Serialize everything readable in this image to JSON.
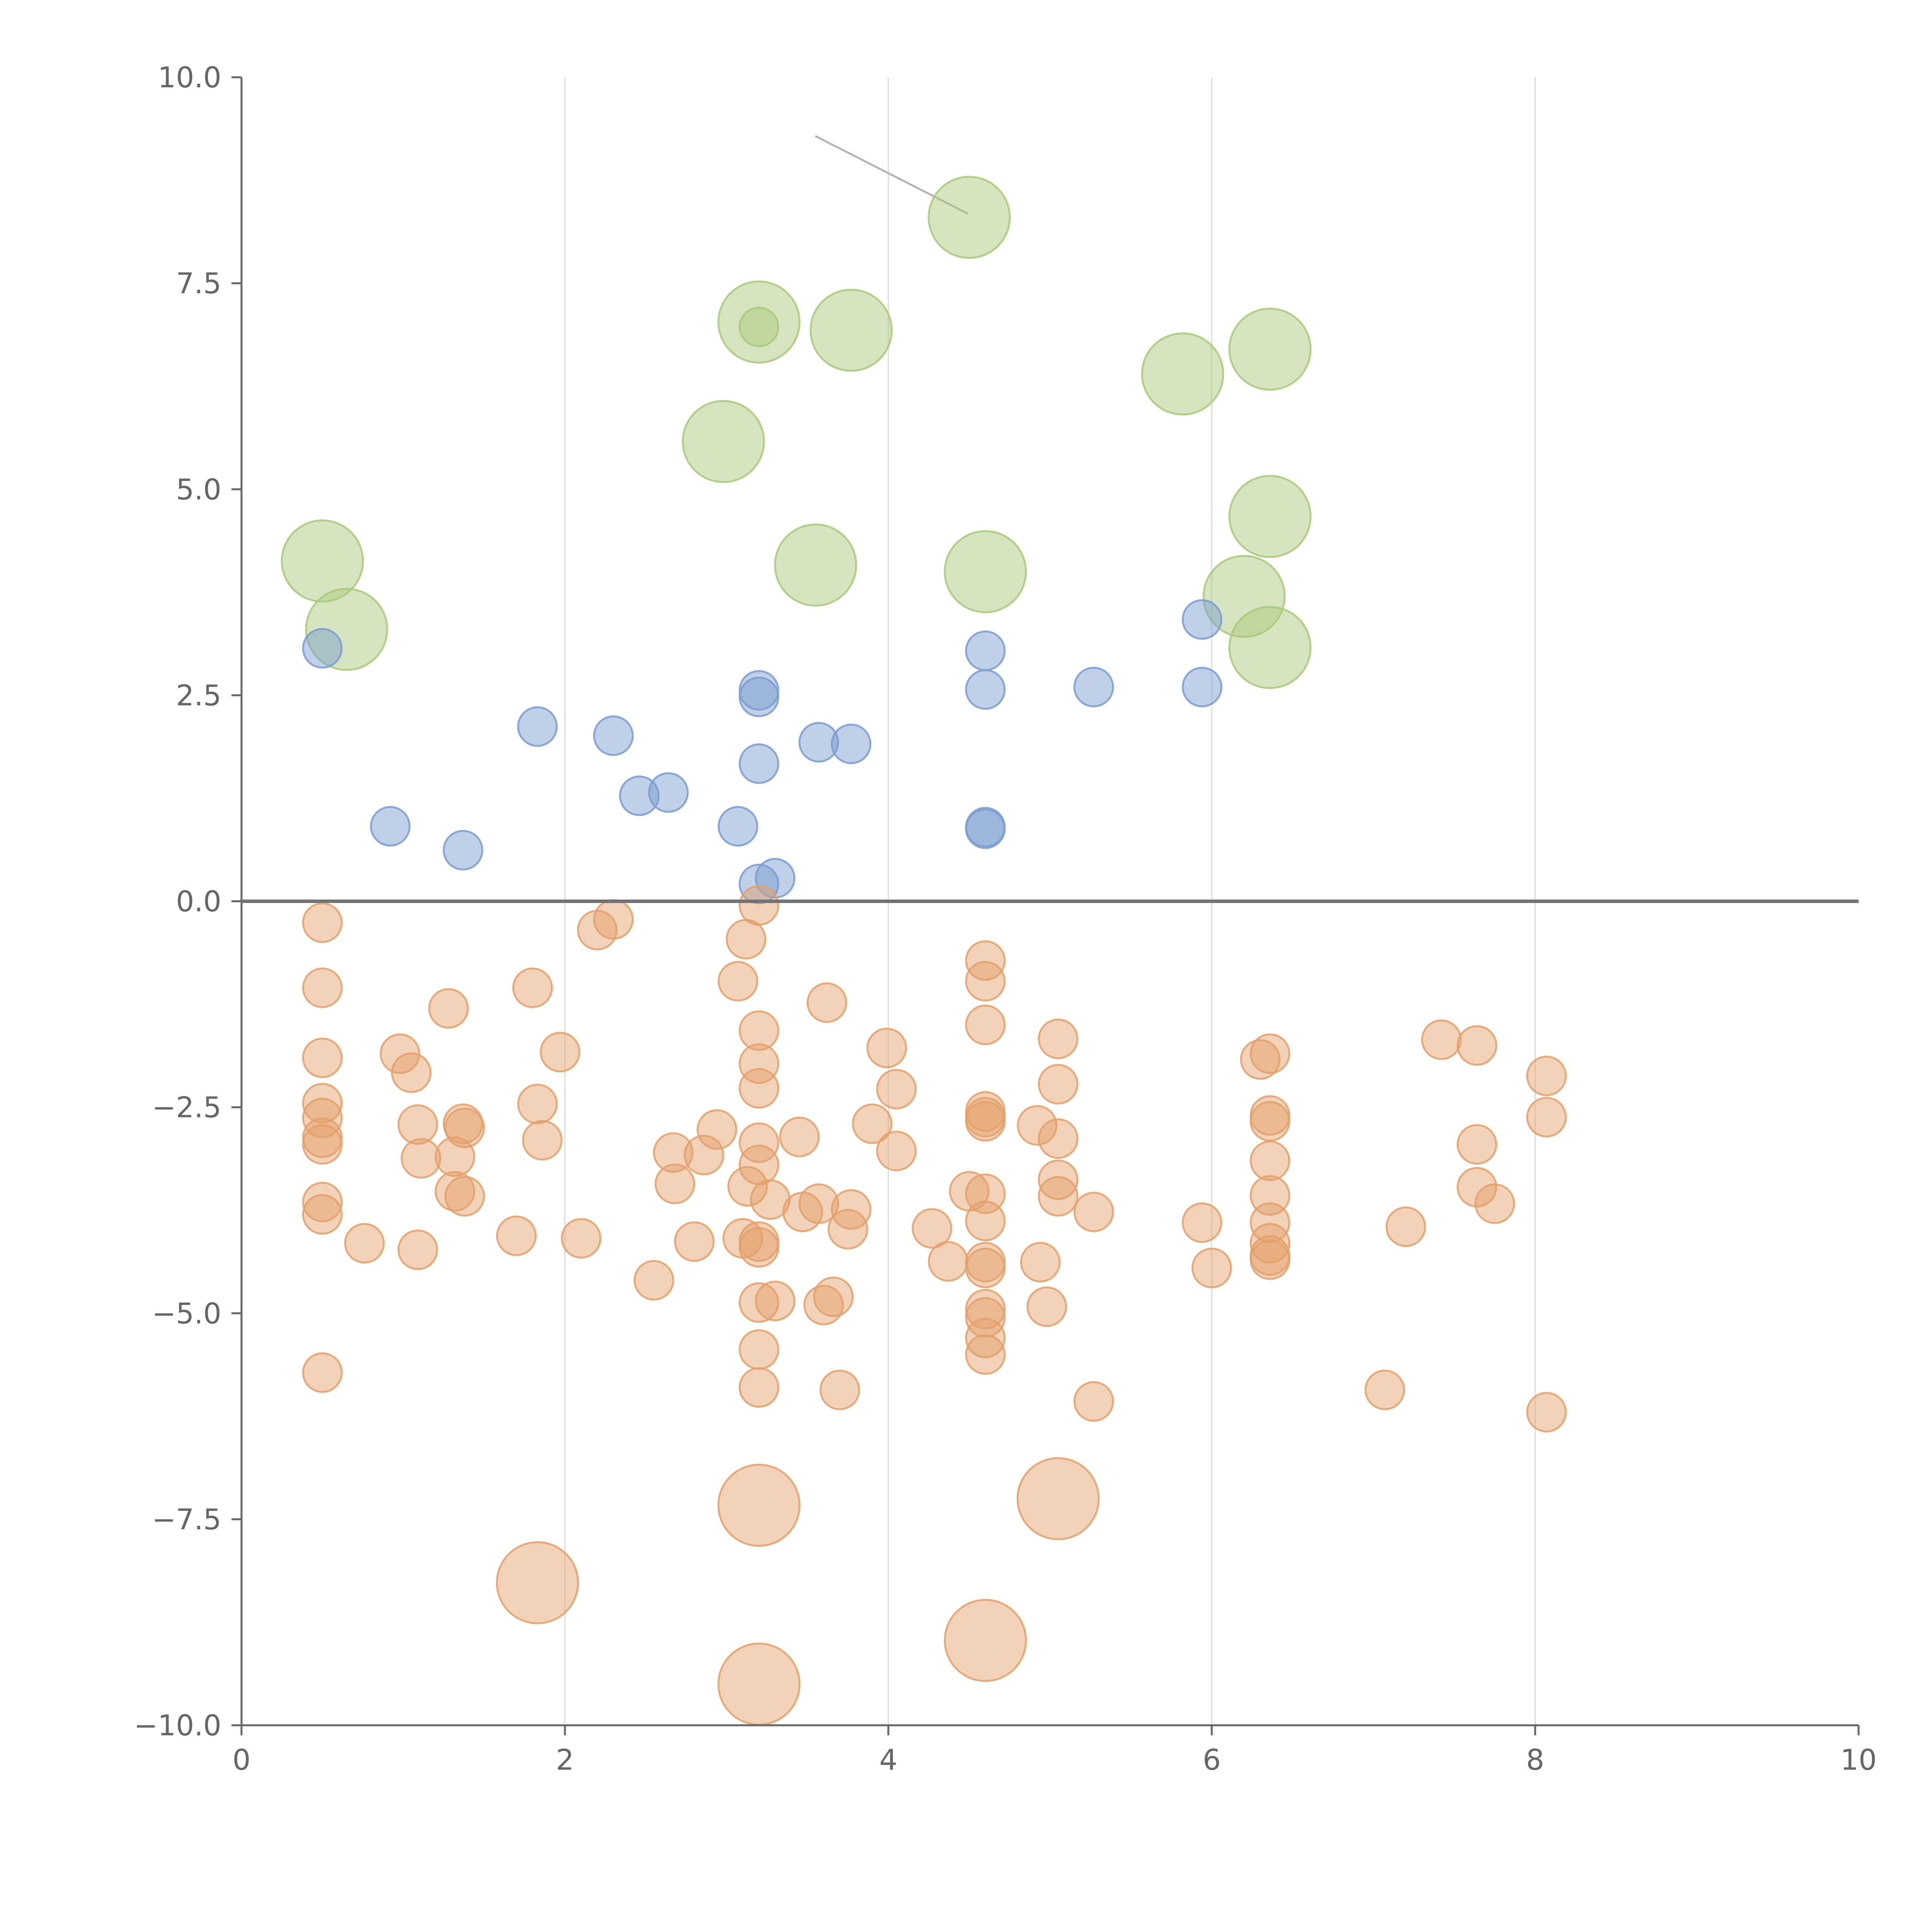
{
  "chart_data": {
    "type": "scatter",
    "title": "",
    "xlabel": "",
    "ylabel": "",
    "xlim": [
      0,
      10
    ],
    "ylim": [
      -10,
      10
    ],
    "x_ticks": [
      0,
      2,
      4,
      6,
      8,
      10
    ],
    "x_tick_labels": [
      "0",
      "2",
      "4",
      "6",
      "8",
      "10"
    ],
    "y_ticks": [
      10,
      7.5,
      5,
      2.5,
      0,
      -2.5,
      -5,
      -7.5,
      -10
    ],
    "y_tick_labels": [
      "10.0",
      "7.5",
      "5.0",
      "2.5",
      "0.0",
      "−2.5",
      "−5.0",
      "−7.5",
      "−10.0"
    ],
    "grid": {
      "vertical": true,
      "horizontal": false
    },
    "zero_line": true,
    "legend": "none",
    "colors": {
      "green": "#a9c97a",
      "blue": "#7a9ccf",
      "orange": "#e3a06a",
      "axis": "#666666",
      "grid": "#d9d9d9",
      "zero_line": "#737373",
      "leader": "#b3b3b3"
    },
    "series": [
      {
        "color_key": "green",
        "size": "large",
        "points": [
          [
            4.5,
            8.3
          ],
          [
            3.2,
            7.03
          ],
          [
            3.77,
            6.93
          ],
          [
            5.82,
            6.4
          ],
          [
            6.36,
            6.7
          ],
          [
            2.98,
            5.58
          ],
          [
            6.36,
            4.67
          ],
          [
            0.5,
            4.13
          ],
          [
            3.55,
            4.08
          ],
          [
            4.6,
            4.0
          ],
          [
            6.2,
            3.7
          ],
          [
            0.65,
            3.3
          ],
          [
            6.36,
            3.08
          ]
        ]
      },
      {
        "color_key": "green",
        "size": "small",
        "points": [
          [
            3.2,
            6.97
          ]
        ]
      },
      {
        "color_key": "blue",
        "size": "small",
        "points": [
          [
            0.5,
            3.07
          ],
          [
            0.92,
            0.91
          ],
          [
            1.37,
            0.62
          ],
          [
            1.83,
            2.12
          ],
          [
            2.3,
            2.01
          ],
          [
            2.46,
            1.28
          ],
          [
            2.64,
            1.32
          ],
          [
            3.07,
            0.91
          ],
          [
            3.2,
            2.56
          ],
          [
            3.2,
            2.48
          ],
          [
            3.2,
            1.67
          ],
          [
            3.2,
            0.21
          ],
          [
            3.3,
            0.28
          ],
          [
            3.57,
            1.93
          ],
          [
            3.77,
            1.91
          ],
          [
            4.6,
            3.04
          ],
          [
            4.6,
            2.57
          ],
          [
            4.6,
            0.9
          ],
          [
            4.6,
            0.88
          ],
          [
            5.27,
            2.6
          ],
          [
            5.94,
            3.42
          ],
          [
            5.94,
            2.6
          ]
        ]
      },
      {
        "color_key": "orange",
        "size": "small",
        "points": [
          [
            0.5,
            -0.26
          ],
          [
            0.5,
            -1.05
          ],
          [
            0.5,
            -1.9
          ],
          [
            0.5,
            -2.45
          ],
          [
            0.5,
            -2.63
          ],
          [
            0.5,
            -2.87
          ],
          [
            0.5,
            -2.95
          ],
          [
            0.5,
            -3.65
          ],
          [
            0.5,
            -3.8
          ],
          [
            0.5,
            -5.72
          ],
          [
            0.76,
            -4.15
          ],
          [
            0.98,
            -1.85
          ],
          [
            1.05,
            -2.08
          ],
          [
            1.09,
            -2.71
          ],
          [
            1.09,
            -4.23
          ],
          [
            1.11,
            -3.12
          ],
          [
            1.28,
            -1.3
          ],
          [
            1.32,
            -3.1
          ],
          [
            1.32,
            -3.52
          ],
          [
            1.37,
            -2.7
          ],
          [
            1.38,
            -2.75
          ],
          [
            1.38,
            -3.58
          ],
          [
            1.7,
            -4.06
          ],
          [
            1.8,
            -1.05
          ],
          [
            1.83,
            -2.46
          ],
          [
            1.86,
            -2.9
          ],
          [
            1.97,
            -1.83
          ],
          [
            2.1,
            -4.09
          ],
          [
            2.2,
            -0.35
          ],
          [
            2.3,
            -0.22
          ],
          [
            2.55,
            -4.6
          ],
          [
            2.67,
            -3.05
          ],
          [
            2.68,
            -3.43
          ],
          [
            2.8,
            -4.13
          ],
          [
            2.86,
            -3.08
          ],
          [
            2.94,
            -2.77
          ],
          [
            3.07,
            -0.97
          ],
          [
            3.1,
            -4.09
          ],
          [
            3.12,
            -0.46
          ],
          [
            3.13,
            -3.46
          ],
          [
            3.2,
            -0.05
          ],
          [
            3.2,
            -1.57
          ],
          [
            3.2,
            -1.97
          ],
          [
            3.2,
            -2.27
          ],
          [
            3.2,
            -2.93
          ],
          [
            3.2,
            -3.2
          ],
          [
            3.2,
            -4.13
          ],
          [
            3.2,
            -4.2
          ],
          [
            3.2,
            -4.87
          ],
          [
            3.2,
            -5.44
          ],
          [
            3.2,
            -5.9
          ],
          [
            3.27,
            -3.62
          ],
          [
            3.3,
            -4.85
          ],
          [
            3.45,
            -2.86
          ],
          [
            3.47,
            -3.77
          ],
          [
            3.57,
            -3.67
          ],
          [
            3.6,
            -4.9
          ],
          [
            3.62,
            -1.23
          ],
          [
            3.66,
            -4.8
          ],
          [
            3.7,
            -5.93
          ],
          [
            3.75,
            -3.98
          ],
          [
            3.77,
            -3.74
          ],
          [
            3.9,
            -2.7
          ],
          [
            3.99,
            -1.78
          ],
          [
            4.05,
            -2.28
          ],
          [
            4.05,
            -3.03
          ],
          [
            4.27,
            -3.97
          ],
          [
            4.37,
            -4.37
          ],
          [
            4.5,
            -3.52
          ],
          [
            4.6,
            -0.72
          ],
          [
            4.6,
            -0.97
          ],
          [
            4.6,
            -1.5
          ],
          [
            4.6,
            -2.55
          ],
          [
            4.6,
            -2.62
          ],
          [
            4.6,
            -2.67
          ],
          [
            4.6,
            -3.55
          ],
          [
            4.6,
            -3.88
          ],
          [
            4.6,
            -4.38
          ],
          [
            4.6,
            -4.45
          ],
          [
            4.6,
            -4.95
          ],
          [
            4.6,
            -5.05
          ],
          [
            4.6,
            -5.3
          ],
          [
            4.6,
            -5.5
          ],
          [
            4.92,
            -2.72
          ],
          [
            4.94,
            -4.38
          ],
          [
            4.98,
            -4.92
          ],
          [
            5.05,
            -1.67
          ],
          [
            5.05,
            -2.22
          ],
          [
            5.05,
            -2.88
          ],
          [
            5.05,
            -3.38
          ],
          [
            5.05,
            -3.58
          ],
          [
            5.27,
            -6.07
          ],
          [
            5.27,
            -3.77
          ],
          [
            5.94,
            -3.9
          ],
          [
            6.0,
            -4.45
          ],
          [
            6.3,
            -1.92
          ],
          [
            6.36,
            -1.85
          ],
          [
            6.36,
            -2.6
          ],
          [
            6.36,
            -2.67
          ],
          [
            6.36,
            -3.15
          ],
          [
            6.36,
            -3.57
          ],
          [
            6.36,
            -3.9
          ],
          [
            6.36,
            -4.15
          ],
          [
            6.36,
            -4.3
          ],
          [
            6.36,
            -4.35
          ],
          [
            7.07,
            -5.93
          ],
          [
            7.2,
            -3.95
          ],
          [
            7.42,
            -1.68
          ],
          [
            7.64,
            -1.75
          ],
          [
            7.64,
            -2.95
          ],
          [
            7.64,
            -3.47
          ],
          [
            7.75,
            -3.67
          ],
          [
            8.07,
            -2.12
          ],
          [
            8.07,
            -2.62
          ],
          [
            8.07,
            -6.2
          ]
        ]
      },
      {
        "color_key": "orange",
        "size": "large",
        "points": [
          [
            3.2,
            -7.33
          ],
          [
            5.05,
            -7.25
          ],
          [
            1.83,
            -8.27
          ],
          [
            4.6,
            -8.97
          ],
          [
            3.2,
            -9.5
          ]
        ]
      }
    ]
  }
}
